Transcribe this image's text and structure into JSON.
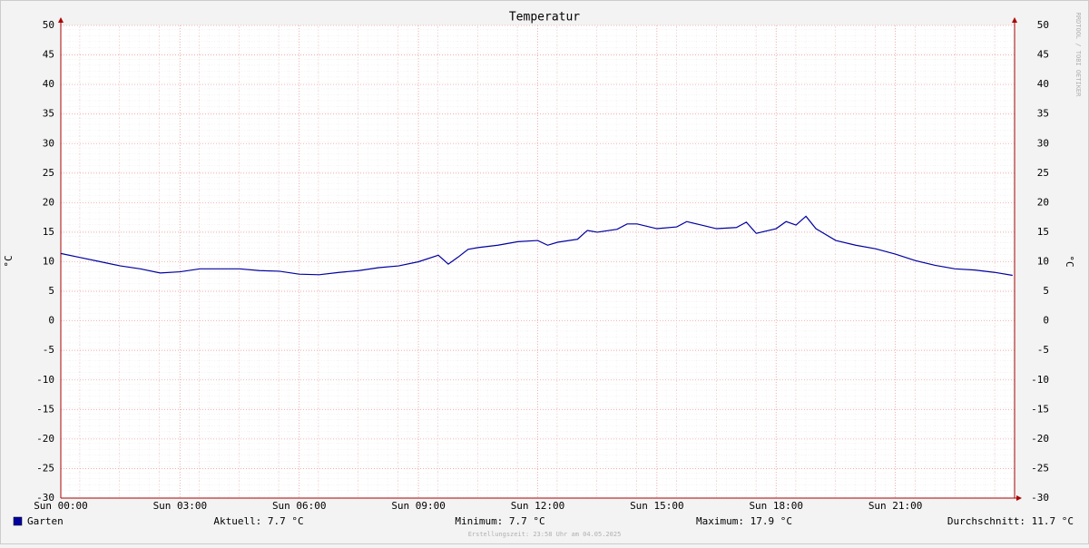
{
  "chart_data": {
    "type": "line",
    "title": "Temperatur",
    "y_label": "°C",
    "watermark": "RRDTOOL / TOBI OETIKER",
    "footer": "Erstellungszeit: 23:58 Uhr am 04.05.2025",
    "x": [
      0,
      0.5,
      1,
      1.5,
      2,
      2.5,
      3,
      3.5,
      4,
      4.5,
      5,
      5.5,
      6,
      6.5,
      7,
      7.5,
      8,
      8.5,
      9,
      9.5,
      9.75,
      10,
      10.25,
      10.5,
      11,
      11.5,
      12,
      12.25,
      12.5,
      13,
      13.25,
      13.5,
      14,
      14.25,
      14.5,
      15,
      15.5,
      15.75,
      16,
      16.5,
      17,
      17.25,
      17.5,
      18,
      18.25,
      18.5,
      18.75,
      19,
      19.5,
      20,
      20.5,
      21,
      21.5,
      22,
      22.5,
      23,
      23.5,
      23.95
    ],
    "series": [
      {
        "name": "Garten",
        "color": "#0000a0",
        "values": [
          11.4,
          10.7,
          10.0,
          9.3,
          8.8,
          8.1,
          8.3,
          8.8,
          8.8,
          8.8,
          8.5,
          8.4,
          7.9,
          7.8,
          8.2,
          8.5,
          9.0,
          9.3,
          10.0,
          11.1,
          9.6,
          10.8,
          12.1,
          12.4,
          12.8,
          13.4,
          13.6,
          12.8,
          13.3,
          13.8,
          15.3,
          15.0,
          15.5,
          16.4,
          16.4,
          15.6,
          15.9,
          16.8,
          16.4,
          15.6,
          15.8,
          16.7,
          14.8,
          15.6,
          16.8,
          16.2,
          17.7,
          15.6,
          13.6,
          12.8,
          12.2,
          11.3,
          10.2,
          9.4,
          8.8,
          8.6,
          8.2,
          7.7
        ]
      }
    ],
    "stats": [
      "Aktuell: 7.7 °C",
      "Minimum: 7.7 °C",
      "Maximum: 17.9 °C",
      "Durchschnitt: 11.7 °C"
    ],
    "xlim": [
      0,
      24
    ],
    "xticks": [
      {
        "value": 0,
        "label": "Sun 00:00"
      },
      {
        "value": 3,
        "label": "Sun 03:00"
      },
      {
        "value": 6,
        "label": "Sun 06:00"
      },
      {
        "value": 9,
        "label": "Sun 09:00"
      },
      {
        "value": 12,
        "label": "Sun 12:00"
      },
      {
        "value": 15,
        "label": "Sun 15:00"
      },
      {
        "value": 18,
        "label": "Sun 18:00"
      },
      {
        "value": 21,
        "label": "Sun 21:00"
      }
    ],
    "ylim": [
      -30,
      50
    ],
    "yticks": [
      -30,
      -25,
      -20,
      -15,
      -10,
      -5,
      0,
      5,
      10,
      15,
      20,
      25,
      30,
      35,
      40,
      45,
      50
    ],
    "grid": true
  }
}
